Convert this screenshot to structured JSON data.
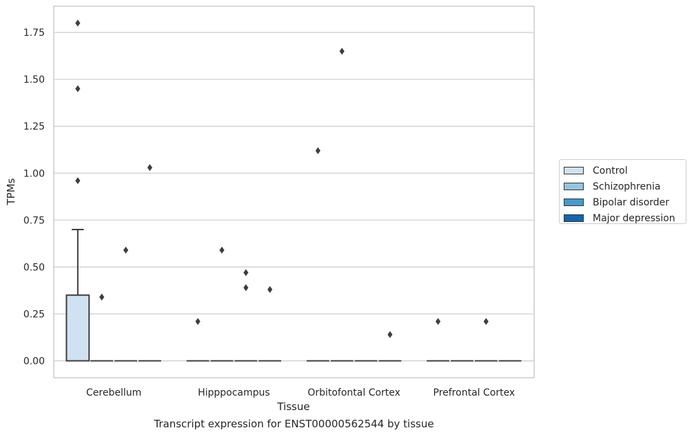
{
  "chart_data": {
    "type": "box",
    "title": "Transcript expression for ENST00000562544 by tissue",
    "xlabel": "Tissue",
    "ylabel": "TPMs",
    "ylim": [
      -0.09,
      1.89
    ],
    "yticks": [
      "0.00",
      "0.25",
      "0.50",
      "0.75",
      "1.00",
      "1.25",
      "1.50",
      "1.75"
    ],
    "ytick_values": [
      0,
      0.25,
      0.5,
      0.75,
      1.0,
      1.25,
      1.5,
      1.75
    ],
    "categories": [
      "Cerebellum",
      "Hipppocampus",
      "Orbitofontal Cortex",
      "Prefrontal Cortex"
    ],
    "grid": "horizontal",
    "legend_position": "right",
    "series": [
      {
        "name": "Control",
        "color": "#d0e1f2",
        "boxes": [
          {
            "q1": 0,
            "median": 0,
            "q3": 0.35,
            "whisker_low": 0,
            "whisker_high": 0.7,
            "outliers": [
              0.96,
              1.45,
              1.8
            ]
          },
          {
            "q1": 0,
            "median": 0,
            "q3": 0,
            "whisker_low": 0,
            "whisker_high": 0,
            "outliers": [
              0.21
            ]
          },
          {
            "q1": 0,
            "median": 0,
            "q3": 0,
            "whisker_low": 0,
            "whisker_high": 0,
            "outliers": [
              1.12
            ]
          },
          {
            "q1": 0,
            "median": 0,
            "q3": 0,
            "whisker_low": 0,
            "whisker_high": 0,
            "outliers": [
              0.21
            ]
          }
        ]
      },
      {
        "name": "Schizophrenia",
        "color": "#94c4df",
        "boxes": [
          {
            "q1": 0,
            "median": 0,
            "q3": 0,
            "whisker_low": 0,
            "whisker_high": 0,
            "outliers": [
              0.34
            ]
          },
          {
            "q1": 0,
            "median": 0,
            "q3": 0,
            "whisker_low": 0,
            "whisker_high": 0,
            "outliers": [
              0.59
            ]
          },
          {
            "q1": 0,
            "median": 0,
            "q3": 0,
            "whisker_low": 0,
            "whisker_high": 0,
            "outliers": [
              1.65
            ]
          },
          {
            "q1": 0,
            "median": 0,
            "q3": 0,
            "whisker_low": 0,
            "whisker_high": 0,
            "outliers": []
          }
        ]
      },
      {
        "name": "Bipolar disorder",
        "color": "#4a98c9",
        "boxes": [
          {
            "q1": 0,
            "median": 0,
            "q3": 0,
            "whisker_low": 0,
            "whisker_high": 0,
            "outliers": [
              0.59
            ]
          },
          {
            "q1": 0,
            "median": 0,
            "q3": 0,
            "whisker_low": 0,
            "whisker_high": 0,
            "outliers": [
              0.39,
              0.47
            ]
          },
          {
            "q1": 0,
            "median": 0,
            "q3": 0,
            "whisker_low": 0,
            "whisker_high": 0,
            "outliers": []
          },
          {
            "q1": 0,
            "median": 0,
            "q3": 0,
            "whisker_low": 0,
            "whisker_high": 0,
            "outliers": [
              0.21
            ]
          }
        ]
      },
      {
        "name": "Major depression",
        "color": "#1764ab",
        "boxes": [
          {
            "q1": 0,
            "median": 0,
            "q3": 0,
            "whisker_low": 0,
            "whisker_high": 0,
            "outliers": [
              1.03
            ]
          },
          {
            "q1": 0,
            "median": 0,
            "q3": 0,
            "whisker_low": 0,
            "whisker_high": 0,
            "outliers": [
              0.38
            ]
          },
          {
            "q1": 0,
            "median": 0,
            "q3": 0,
            "whisker_low": 0,
            "whisker_high": 0,
            "outliers": [
              0.14
            ]
          },
          {
            "q1": 0,
            "median": 0,
            "q3": 0,
            "whisker_low": 0,
            "whisker_high": 0,
            "outliers": []
          }
        ]
      }
    ]
  }
}
